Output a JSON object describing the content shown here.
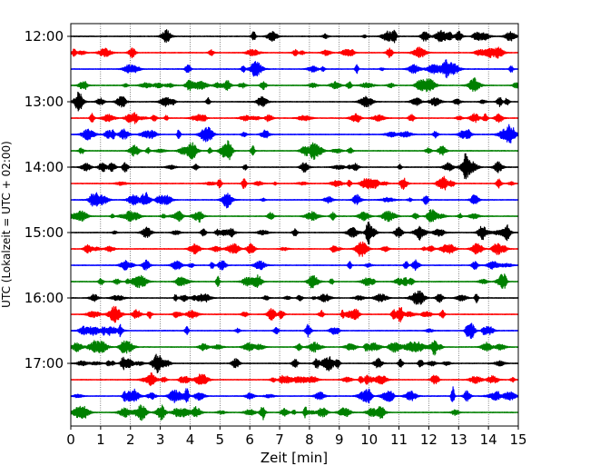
{
  "chart_data": {
    "type": "line",
    "chart_kind": "helicorder",
    "xlabel": "Zeit  [min]",
    "ylabel": "UTC (Lokalzeit = UTC + 02:00)",
    "xlim": [
      0,
      15
    ],
    "x_ticks": [
      "0",
      "1",
      "2",
      "3",
      "4",
      "5",
      "6",
      "7",
      "8",
      "9",
      "10",
      "11",
      "12",
      "13",
      "14",
      "15"
    ],
    "vertical_grid": "dotted at each minute",
    "y_ticks": [
      "12:00",
      "13:00",
      "14:00",
      "15:00",
      "16:00",
      "17:00"
    ],
    "trace_start_times": [
      "12:00",
      "12:15",
      "12:30",
      "12:45",
      "13:00",
      "13:15",
      "13:30",
      "13:45",
      "14:00",
      "14:15",
      "14:30",
      "14:45",
      "15:00",
      "15:15",
      "15:30",
      "15:45",
      "16:00",
      "16:15",
      "16:30",
      "16:45",
      "17:00",
      "17:15",
      "17:30",
      "17:45"
    ],
    "trace_colors": [
      "#000000",
      "#ff0000",
      "#0000ff",
      "#008000"
    ],
    "notable_event": {
      "trace": "17:30",
      "minute": 12.8
    }
  }
}
